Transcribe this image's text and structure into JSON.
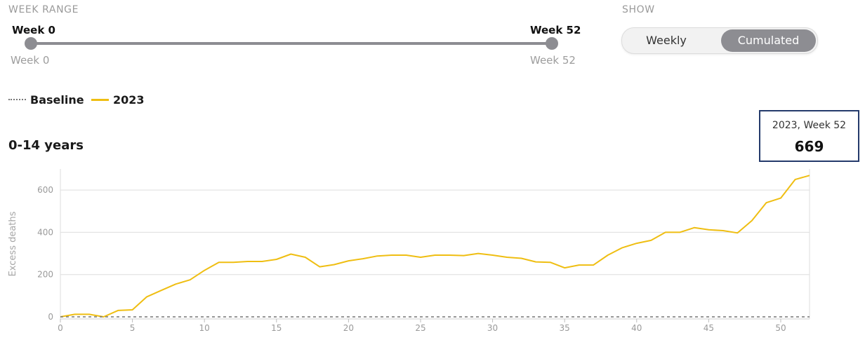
{
  "controls": {
    "week_range_label": "WEEK RANGE",
    "show_label": "SHOW",
    "range_start_value": "Week 0",
    "range_end_value": "Week 52",
    "range_start_caption": "Week 0",
    "range_end_caption": "Week 52",
    "toggle_weekly": "Weekly",
    "toggle_cumulated": "Cumulated",
    "active_toggle": "Cumulated"
  },
  "legend": {
    "baseline_label": "Baseline",
    "series_label": "2023"
  },
  "panel_title": "0-14 years",
  "tooltip": {
    "label": "2023, Week 52",
    "value": "669"
  },
  "colors": {
    "series_2023": "#efbe12",
    "baseline": "#777777",
    "grid": "#dedede",
    "tooltip_border": "#243a6b",
    "toggle_active": "#8d8d92"
  },
  "chart_data": {
    "type": "line",
    "title": "0-14 years",
    "xlabel": "",
    "ylabel": "Excess deaths",
    "xlim": [
      0,
      52
    ],
    "ylim": [
      -10,
      700
    ],
    "x_ticks": [
      0,
      5,
      10,
      15,
      20,
      25,
      30,
      35,
      40,
      45,
      50
    ],
    "y_ticks": [
      0,
      200,
      400,
      600
    ],
    "grid": true,
    "legend_position": "top-left",
    "x": [
      0,
      1,
      2,
      3,
      4,
      5,
      6,
      7,
      8,
      9,
      10,
      11,
      12,
      13,
      14,
      15,
      16,
      17,
      18,
      19,
      20,
      21,
      22,
      23,
      24,
      25,
      26,
      27,
      28,
      29,
      30,
      31,
      32,
      33,
      34,
      35,
      36,
      37,
      38,
      39,
      40,
      41,
      42,
      43,
      44,
      45,
      46,
      47,
      48,
      49,
      50,
      51,
      52
    ],
    "series": [
      {
        "name": "2023",
        "values": [
          0,
          12,
          12,
          0,
          30,
          33,
          95,
          125,
          155,
          175,
          220,
          258,
          258,
          262,
          262,
          272,
          297,
          282,
          237,
          247,
          265,
          275,
          288,
          292,
          292,
          282,
          292,
          292,
          290,
          300,
          292,
          282,
          277,
          260,
          258,
          232,
          245,
          245,
          292,
          327,
          348,
          362,
          400,
          400,
          422,
          412,
          408,
          397,
          455,
          540,
          562,
          650,
          669
        ]
      },
      {
        "name": "Baseline",
        "values": [
          0,
          0,
          0,
          0,
          0,
          0,
          0,
          0,
          0,
          0,
          0,
          0,
          0,
          0,
          0,
          0,
          0,
          0,
          0,
          0,
          0,
          0,
          0,
          0,
          0,
          0,
          0,
          0,
          0,
          0,
          0,
          0,
          0,
          0,
          0,
          0,
          0,
          0,
          0,
          0,
          0,
          0,
          0,
          0,
          0,
          0,
          0,
          0,
          0,
          0,
          0,
          0,
          0
        ]
      }
    ]
  }
}
